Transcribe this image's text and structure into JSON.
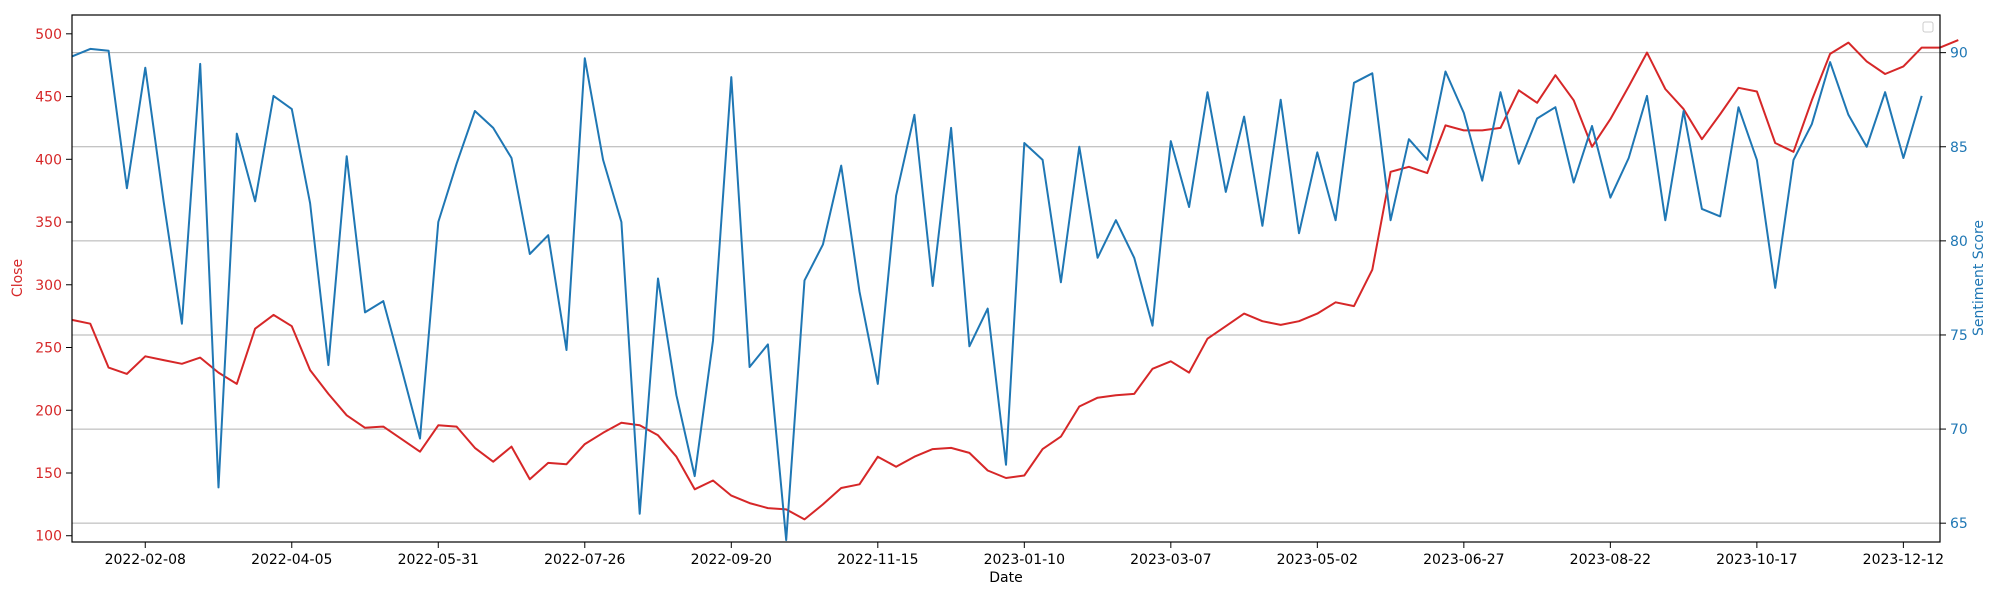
{
  "chart_data": {
    "type": "line",
    "xlabel": "Date",
    "y_left_label": "Close",
    "y_right_label": "Sentiment Score",
    "x_range": [
      "2022-01-11",
      "2023-12-26"
    ],
    "y_left_range": [
      95,
      515
    ],
    "y_right_range": [
      64.0,
      92.0
    ],
    "x_ticks": [
      "2022-02-08",
      "2022-04-05",
      "2022-05-31",
      "2022-07-26",
      "2022-09-20",
      "2022-11-15",
      "2023-01-10",
      "2023-03-07",
      "2023-05-02",
      "2023-06-27",
      "2023-08-22",
      "2023-10-17",
      "2023-12-12"
    ],
    "y_left_ticks": [
      100,
      150,
      200,
      250,
      300,
      350,
      400,
      450,
      500
    ],
    "y_right_ticks": [
      65,
      70,
      75,
      80,
      85,
      90
    ],
    "grid": "horizontal (right axis)",
    "legend": "top-right (empty)",
    "colors": {
      "close": "#d62728",
      "sentiment": "#1f77b4",
      "grid": "#b0b0b0"
    },
    "series": [
      {
        "axis": "left",
        "start": "2022-01-11",
        "interval_days": 7,
        "values": [
          272,
          269,
          234,
          229,
          243,
          240,
          237,
          242,
          230,
          221,
          265,
          276,
          267,
          232,
          213,
          196,
          186,
          187,
          177,
          167,
          188,
          187,
          170,
          159,
          171,
          145,
          158,
          157,
          173,
          182,
          190,
          188,
          180,
          163,
          137,
          144,
          132,
          126,
          122,
          121,
          113,
          125,
          138,
          141,
          163,
          155,
          163,
          169,
          170,
          166,
          152,
          146,
          148,
          169,
          179,
          203,
          210,
          212,
          213,
          233,
          239,
          230,
          257,
          267,
          277,
          271,
          268,
          271,
          277,
          286,
          283,
          312,
          390,
          394,
          389,
          427,
          423,
          423,
          425,
          455,
          445,
          467,
          447,
          410,
          432,
          458,
          485,
          456,
          440,
          416,
          436,
          457,
          454,
          413,
          406,
          447,
          484,
          493,
          478,
          468,
          474,
          489,
          489,
          495
        ]
      },
      {
        "axis": "right",
        "start": "2022-01-11",
        "interval_days": 7,
        "values": [
          89.8,
          90.2,
          90.1,
          82.8,
          89.2,
          82.1,
          75.6,
          89.4,
          66.9,
          85.7,
          82.1,
          87.7,
          87.0,
          82.0,
          73.4,
          84.5,
          76.2,
          76.8,
          73.2,
          69.5,
          81.0,
          84.1,
          86.9,
          86.0,
          84.4,
          79.3,
          80.3,
          74.2,
          89.7,
          84.3,
          81.0,
          65.5,
          78.0,
          71.8,
          67.5,
          74.7,
          88.7,
          73.3,
          74.5,
          64.1,
          77.9,
          79.8,
          84.0,
          77.3,
          72.4,
          82.4,
          86.7,
          77.6,
          86.0,
          74.4,
          76.4,
          68.1,
          85.2,
          84.3,
          77.8,
          85.0,
          79.1,
          81.1,
          79.1,
          75.5,
          85.3,
          81.8,
          87.9,
          82.6,
          86.6,
          80.8,
          87.5,
          80.4,
          84.7,
          81.1,
          88.4,
          88.9,
          81.1,
          85.4,
          84.3,
          89.0,
          86.8,
          83.2,
          87.9,
          84.1,
          86.5,
          87.1,
          83.1,
          86.1,
          82.3,
          84.4,
          87.7,
          81.1,
          86.9,
          81.7,
          81.3,
          87.1,
          84.3,
          77.5,
          84.3,
          86.2,
          89.5,
          86.7,
          85.0,
          87.9,
          84.4,
          87.7
        ]
      }
    ]
  }
}
